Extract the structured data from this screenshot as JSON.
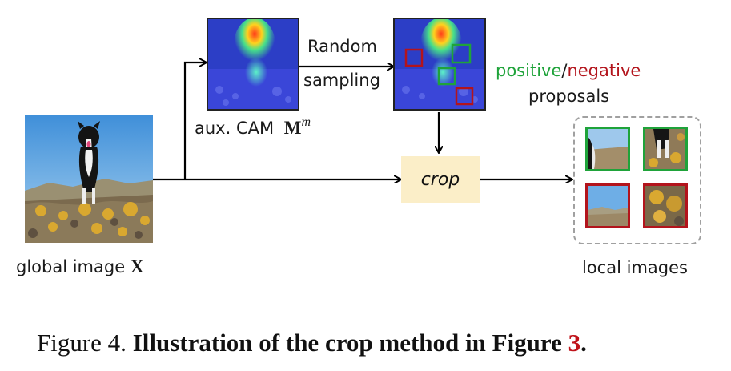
{
  "figure": {
    "global_image_label": "global image",
    "global_image_symbol": "X",
    "cam_label": "aux. CAM",
    "cam_symbol": "M",
    "cam_superscript": "m",
    "random_sampling_line1": "Random",
    "random_sampling_line2": "sampling",
    "positive_text": "positive",
    "slash_text": "/",
    "negative_text": "negative",
    "proposals_text": "proposals",
    "crop_text": "crop",
    "local_images_label": "local images"
  },
  "colors": {
    "positive": "#1fa33a",
    "negative": "#b3141c",
    "crop_box": "#fbeec8",
    "dashed_border": "#a0a0a0"
  },
  "caption": {
    "prefix": "Figure 4.",
    "bold_text": "Illustration of the crop method in Figure",
    "ref": "3",
    "suffix": "."
  }
}
